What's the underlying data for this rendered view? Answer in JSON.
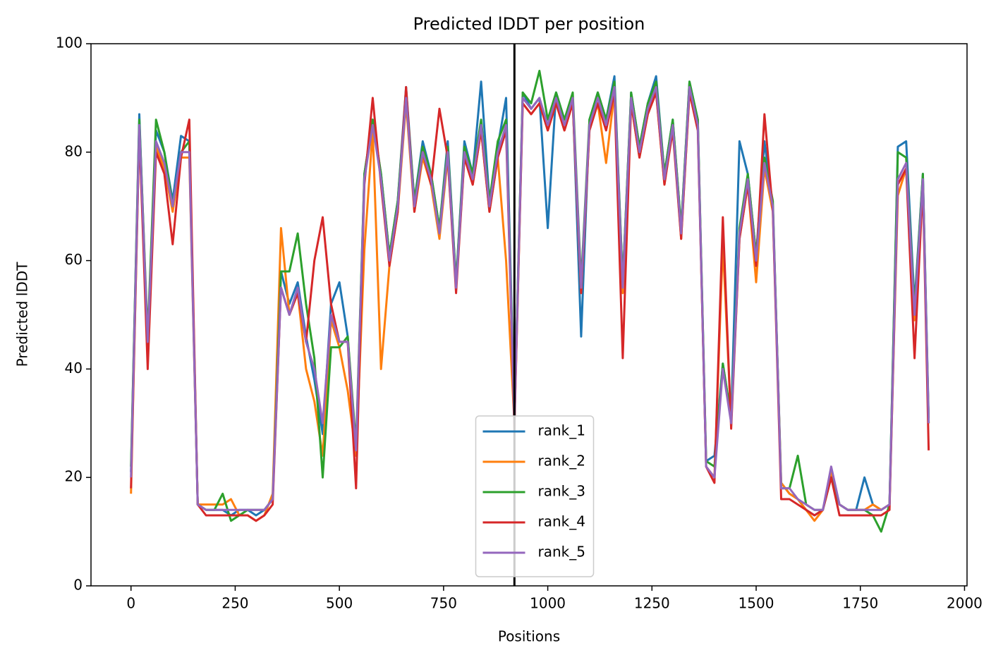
{
  "chart_data": {
    "type": "line",
    "title": "Predicted lDDT per position",
    "xlabel": "Positions",
    "ylabel": "Predicted lDDT",
    "x": [
      0,
      20,
      40,
      60,
      80,
      100,
      120,
      140,
      160,
      180,
      200,
      220,
      240,
      260,
      280,
      300,
      320,
      340,
      360,
      380,
      400,
      420,
      440,
      460,
      480,
      500,
      520,
      540,
      560,
      580,
      600,
      620,
      640,
      660,
      680,
      700,
      720,
      740,
      760,
      780,
      800,
      820,
      840,
      860,
      880,
      900,
      920,
      940,
      960,
      980,
      1000,
      1020,
      1040,
      1060,
      1080,
      1100,
      1120,
      1140,
      1160,
      1180,
      1200,
      1220,
      1240,
      1260,
      1280,
      1300,
      1320,
      1340,
      1360,
      1380,
      1400,
      1420,
      1440,
      1460,
      1480,
      1500,
      1520,
      1540,
      1560,
      1580,
      1600,
      1620,
      1640,
      1660,
      1680,
      1700,
      1720,
      1740,
      1760,
      1780,
      1800,
      1820,
      1840,
      1860,
      1880,
      1900,
      1914
    ],
    "series": [
      {
        "name": "rank_1",
        "color": "#1f77b4",
        "values": [
          21,
          87,
          44,
          84,
          80,
          71,
          83,
          82,
          15,
          14,
          14,
          14,
          13,
          14,
          14,
          13,
          14,
          16,
          58,
          52,
          56,
          46,
          38,
          28,
          52,
          56,
          46,
          24,
          76,
          86,
          76,
          61,
          71,
          92,
          71,
          82,
          76,
          66,
          82,
          56,
          82,
          76,
          93,
          71,
          81,
          90,
          31,
          91,
          88,
          90,
          66,
          91,
          86,
          90,
          46,
          86,
          91,
          86,
          94,
          56,
          91,
          81,
          89,
          94,
          76,
          86,
          66,
          93,
          86,
          23,
          24,
          41,
          31,
          82,
          76,
          61,
          82,
          70,
          19,
          17,
          16,
          14,
          13,
          14,
          21,
          15,
          14,
          14,
          20,
          15,
          14,
          15,
          81,
          82,
          52,
          76,
          31
        ]
      },
      {
        "name": "rank_2",
        "color": "#ff7f0e",
        "values": [
          17,
          84,
          44,
          81,
          77,
          69,
          79,
          79,
          15,
          15,
          15,
          15,
          16,
          13,
          13,
          12,
          13,
          17,
          66,
          50,
          54,
          40,
          34,
          24,
          49,
          44,
          36,
          24,
          62,
          84,
          40,
          59,
          69,
          89,
          69,
          79,
          74,
          64,
          79,
          55,
          79,
          74,
          84,
          69,
          79,
          60,
          30,
          89,
          87,
          89,
          84,
          89,
          84,
          89,
          54,
          84,
          89,
          78,
          91,
          54,
          89,
          79,
          87,
          91,
          74,
          85,
          64,
          91,
          85,
          22,
          20,
          63,
          30,
          64,
          74,
          56,
          77,
          69,
          19,
          17,
          16,
          14,
          12,
          14,
          21,
          15,
          14,
          14,
          14,
          15,
          14,
          15,
          72,
          77,
          49,
          74,
          30
        ]
      },
      {
        "name": "rank_3",
        "color": "#2ca02c",
        "values": [
          22,
          86,
          46,
          86,
          80,
          70,
          80,
          82,
          15,
          14,
          14,
          17,
          12,
          13,
          14,
          14,
          14,
          16,
          58,
          58,
          65,
          52,
          42,
          20,
          44,
          44,
          46,
          26,
          76,
          86,
          76,
          61,
          71,
          91,
          71,
          81,
          76,
          66,
          81,
          56,
          81,
          76,
          86,
          71,
          82,
          86,
          31,
          91,
          89,
          95,
          86,
          91,
          86,
          91,
          56,
          86,
          91,
          86,
          93,
          56,
          91,
          81,
          89,
          93,
          76,
          86,
          66,
          93,
          86,
          23,
          22,
          41,
          31,
          66,
          76,
          61,
          79,
          71,
          18,
          18,
          24,
          15,
          14,
          14,
          20,
          15,
          14,
          14,
          14,
          13,
          10,
          15,
          80,
          79,
          51,
          76,
          30
        ]
      },
      {
        "name": "rank_4",
        "color": "#d62728",
        "values": [
          18,
          84,
          40,
          80,
          76,
          63,
          79,
          86,
          15,
          13,
          13,
          13,
          13,
          13,
          13,
          12,
          13,
          15,
          55,
          50,
          54,
          45,
          60,
          68,
          52,
          45,
          45,
          18,
          74,
          90,
          74,
          59,
          69,
          92,
          69,
          80,
          74,
          88,
          79,
          54,
          79,
          74,
          84,
          69,
          79,
          84,
          29,
          89,
          87,
          89,
          84,
          89,
          84,
          89,
          54,
          84,
          89,
          84,
          91,
          42,
          89,
          79,
          87,
          91,
          74,
          84,
          64,
          91,
          84,
          22,
          19,
          68,
          29,
          64,
          74,
          59,
          87,
          69,
          16,
          16,
          15,
          14,
          13,
          14,
          20,
          13,
          13,
          13,
          13,
          13,
          13,
          14,
          74,
          77,
          42,
          74,
          25
        ]
      },
      {
        "name": "rank_5",
        "color": "#9467bd",
        "values": [
          20,
          85,
          45,
          82,
          78,
          70,
          80,
          80,
          15,
          14,
          14,
          14,
          14,
          14,
          14,
          14,
          14,
          16,
          55,
          50,
          55,
          45,
          40,
          30,
          50,
          45,
          45,
          25,
          75,
          85,
          75,
          60,
          70,
          90,
          70,
          80,
          75,
          65,
          80,
          55,
          80,
          75,
          85,
          70,
          80,
          85,
          30,
          90,
          88,
          90,
          85,
          90,
          85,
          90,
          55,
          85,
          90,
          85,
          92,
          55,
          90,
          80,
          88,
          92,
          75,
          85,
          65,
          92,
          85,
          22,
          20,
          40,
          30,
          65,
          75,
          60,
          78,
          70,
          18,
          18,
          16,
          15,
          14,
          14,
          22,
          15,
          14,
          14,
          14,
          14,
          14,
          15,
          75,
          78,
          50,
          75,
          30
        ]
      }
    ],
    "vlines": [
      {
        "x": 920,
        "color": "#000000"
      }
    ],
    "xlim": [
      -96,
      2006
    ],
    "xticks": [
      0,
      250,
      500,
      750,
      1000,
      1250,
      1500,
      1750,
      2000
    ],
    "ylim": [
      0,
      100
    ],
    "yticks": [
      0,
      20,
      40,
      60,
      80,
      100
    ],
    "grid": false,
    "legend": "lower center"
  }
}
